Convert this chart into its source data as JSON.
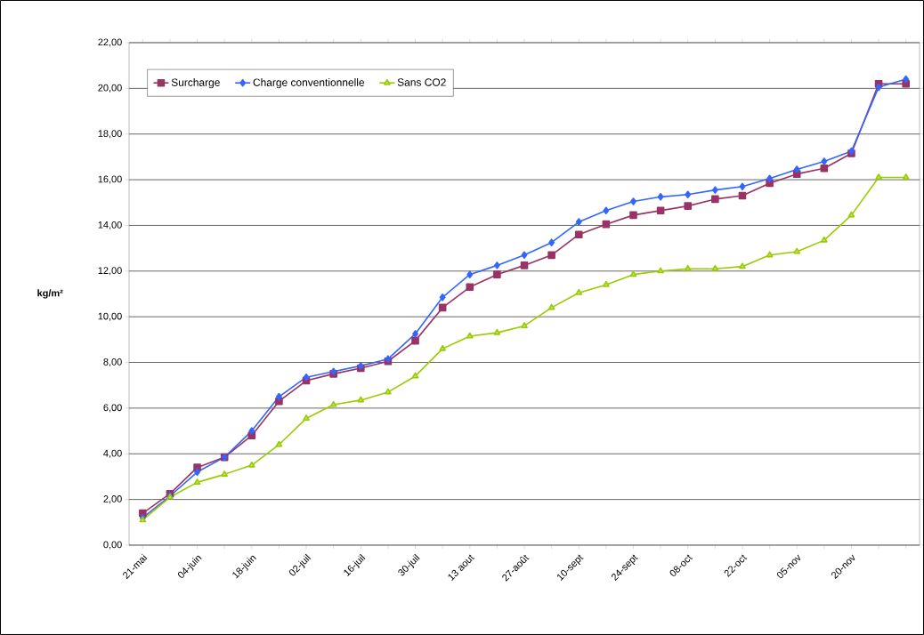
{
  "chart_data": {
    "type": "line",
    "ylabel": "kg/m²",
    "categories": [
      "21-mai",
      null,
      "04-juin",
      null,
      "18-juin",
      null,
      "02-juil",
      null,
      "16-juil",
      null,
      "30-juil",
      null,
      "13 aout",
      null,
      "27-août",
      null,
      "10-sept",
      null,
      "24-sept",
      null,
      "08-oct",
      null,
      "22-oct",
      null,
      "05-nov",
      null,
      "20-nov",
      null,
      null
    ],
    "series": [
      {
        "name": "Surcharge",
        "color": "#993366",
        "marker": "square",
        "values": [
          1.4,
          2.25,
          3.4,
          3.85,
          4.8,
          6.3,
          7.2,
          7.5,
          7.75,
          8.05,
          8.95,
          10.4,
          11.3,
          11.85,
          12.25,
          12.7,
          13.6,
          14.05,
          14.45,
          14.65,
          14.85,
          15.15,
          15.3,
          15.85,
          16.25,
          16.5,
          17.15,
          20.2,
          20.2
        ]
      },
      {
        "name": "Charge conventionnelle",
        "color": "#3366ff",
        "marker": "diamond",
        "values": [
          1.2,
          2.15,
          3.2,
          3.85,
          5.0,
          6.5,
          7.35,
          7.6,
          7.85,
          8.15,
          9.25,
          10.85,
          11.85,
          12.25,
          12.7,
          13.25,
          14.15,
          14.65,
          15.05,
          15.25,
          15.35,
          15.55,
          15.7,
          16.05,
          16.45,
          16.8,
          17.25,
          20.05,
          20.4
        ]
      },
      {
        "name": "Sans CO2",
        "color": "#99cc00",
        "marker": "triangle",
        "values": [
          1.1,
          2.1,
          2.75,
          3.1,
          3.5,
          4.4,
          5.55,
          6.15,
          6.35,
          6.7,
          7.4,
          8.6,
          9.15,
          9.3,
          9.6,
          10.4,
          11.05,
          11.4,
          11.85,
          12.0,
          12.1,
          12.1,
          12.2,
          12.7,
          12.85,
          13.35,
          14.45,
          16.1,
          16.1
        ]
      }
    ],
    "ylim": [
      0,
      22
    ],
    "yticks": [
      {
        "value": 0,
        "label": "0,00"
      },
      {
        "value": 2,
        "label": "2,00"
      },
      {
        "value": 4,
        "label": "4,00"
      },
      {
        "value": 6,
        "label": "6,00"
      },
      {
        "value": 8,
        "label": "8,00"
      },
      {
        "value": 10,
        "label": "10,00"
      },
      {
        "value": 12,
        "label": "12,00"
      },
      {
        "value": 14,
        "label": "14,00"
      },
      {
        "value": 16,
        "label": "16,00"
      },
      {
        "value": 18,
        "label": "18,00"
      },
      {
        "value": 20,
        "label": "20,00"
      },
      {
        "value": 22,
        "label": "22,00"
      }
    ],
    "grid": "y",
    "legend": "top left",
    "line_style": "solid"
  }
}
